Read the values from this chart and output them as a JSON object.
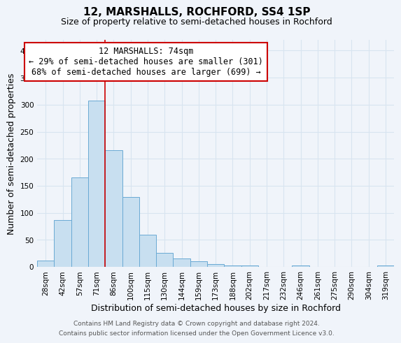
{
  "title": "12, MARSHALLS, ROCHFORD, SS4 1SP",
  "subtitle": "Size of property relative to semi-detached houses in Rochford",
  "xlabel": "Distribution of semi-detached houses by size in Rochford",
  "ylabel": "Number of semi-detached properties",
  "footer_line1": "Contains HM Land Registry data © Crown copyright and database right 2024.",
  "footer_line2": "Contains public sector information licensed under the Open Government Licence v3.0.",
  "bin_labels": [
    "28sqm",
    "42sqm",
    "57sqm",
    "71sqm",
    "86sqm",
    "100sqm",
    "115sqm",
    "130sqm",
    "144sqm",
    "159sqm",
    "173sqm",
    "188sqm",
    "202sqm",
    "217sqm",
    "232sqm",
    "246sqm",
    "261sqm",
    "275sqm",
    "290sqm",
    "304sqm",
    "319sqm"
  ],
  "bar_heights": [
    12,
    86,
    166,
    308,
    216,
    129,
    59,
    26,
    15,
    10,
    5,
    3,
    2,
    0,
    0,
    2,
    0,
    0,
    0,
    0,
    2
  ],
  "bar_color": "#c8dff0",
  "bar_edge_color": "#6aaad4",
  "ylim": [
    0,
    420
  ],
  "yticks": [
    0,
    50,
    100,
    150,
    200,
    250,
    300,
    350,
    400
  ],
  "property_line_bin_index": 3,
  "red_line_color": "#cc0000",
  "annotation_title": "12 MARSHALLS: 74sqm",
  "annotation_line1": "← 29% of semi-detached houses are smaller (301)",
  "annotation_line2": "68% of semi-detached houses are larger (699) →",
  "annotation_box_color": "#ffffff",
  "annotation_box_edge_color": "#cc0000",
  "background_color": "#f0f4fa",
  "grid_color": "#d8e4f0",
  "title_fontsize": 11,
  "subtitle_fontsize": 9,
  "axis_label_fontsize": 9,
  "tick_fontsize": 7.5,
  "annotation_fontsize": 8.5,
  "footer_fontsize": 6.5
}
